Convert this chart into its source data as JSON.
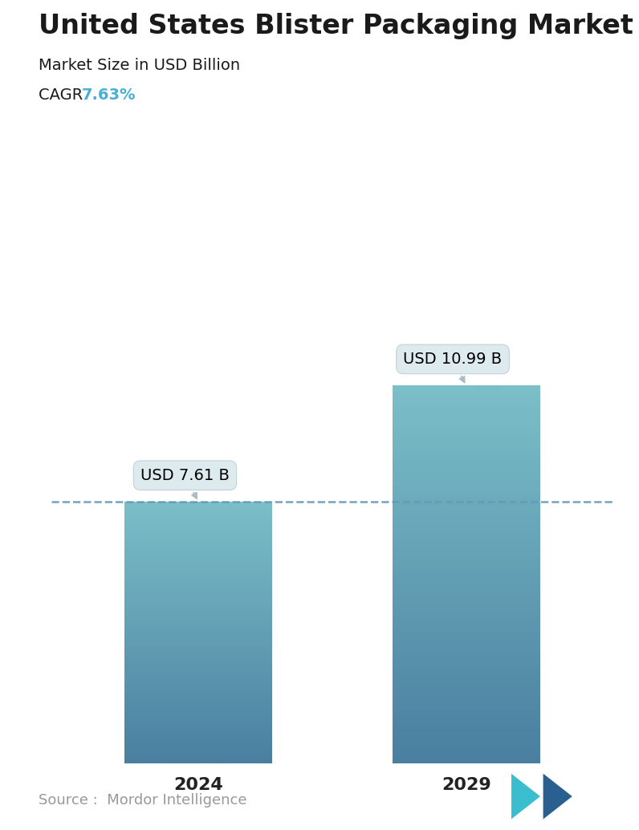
{
  "title": "United States Blister Packaging Market",
  "subtitle": "Market Size in USD Billion",
  "cagr_label": "CAGR ",
  "cagr_value": "7.63%",
  "cagr_color": "#4AAFD5",
  "categories": [
    "2024",
    "2029"
  ],
  "values": [
    7.61,
    10.99
  ],
  "bar_labels": [
    "USD 7.61 B",
    "USD 10.99 B"
  ],
  "bar_color_top": "#7BBFC8",
  "bar_color_bottom": "#4A7FA0",
  "dashed_line_color": "#6699BB",
  "dashed_line_y": 7.61,
  "source_text": "Source :  Mordor Intelligence",
  "source_color": "#999999",
  "background_color": "#ffffff",
  "title_fontsize": 24,
  "subtitle_fontsize": 14,
  "cagr_fontsize": 14,
  "bar_label_fontsize": 14,
  "xlabel_fontsize": 16,
  "source_fontsize": 13,
  "ylim": [
    0,
    14
  ],
  "bar_width": 0.55,
  "x_positions": [
    0,
    1
  ]
}
